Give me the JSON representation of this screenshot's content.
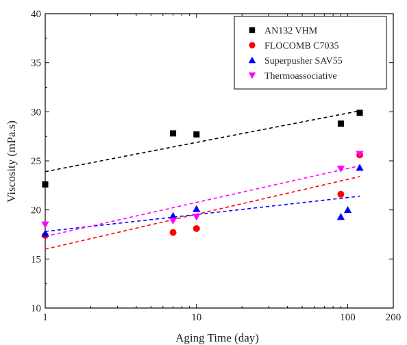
{
  "chart_data": {
    "type": "scatter",
    "xlabel": "Aging Time (day)",
    "ylabel": "Viscosity (mPa.s)",
    "xscale": "log",
    "xlim": [
      1,
      200
    ],
    "ylim": [
      10,
      40
    ],
    "xticks": [
      {
        "value": 1,
        "label": "1"
      },
      {
        "value": 10,
        "label": "10"
      },
      {
        "value": 100,
        "label": "100"
      },
      {
        "value": 200,
        "label": "200"
      }
    ],
    "yticks": [
      10,
      15,
      20,
      25,
      30,
      35,
      40
    ],
    "legend_position": "top-right",
    "series": [
      {
        "name": "AN132 VHM",
        "marker": "square",
        "color": "#000000",
        "points": [
          [
            1,
            22.6
          ],
          [
            7,
            27.8
          ],
          [
            10,
            27.7
          ],
          [
            90,
            28.8
          ],
          [
            120,
            29.9
          ]
        ],
        "fit": [
          [
            1,
            23.9
          ],
          [
            120,
            30.1
          ]
        ]
      },
      {
        "name": "FLOCOMB C7035",
        "marker": "circle",
        "color": "#ff0000",
        "points": [
          [
            1,
            17.4
          ],
          [
            7,
            17.7
          ],
          [
            10,
            18.1
          ],
          [
            90,
            21.6
          ],
          [
            120,
            25.6
          ]
        ],
        "fit": [
          [
            1,
            16.0
          ],
          [
            120,
            23.4
          ]
        ]
      },
      {
        "name": "Superpusher SAV55",
        "marker": "triangle-up",
        "color": "#0000ff",
        "points": [
          [
            1,
            17.6
          ],
          [
            7,
            19.4
          ],
          [
            10,
            20.1
          ],
          [
            90,
            19.3
          ],
          [
            100,
            20.0
          ],
          [
            120,
            24.3
          ]
        ],
        "fit": [
          [
            1,
            17.8
          ],
          [
            120,
            21.4
          ]
        ]
      },
      {
        "name": "Thermoassociative",
        "marker": "triangle-down",
        "color": "#ff00ff",
        "points": [
          [
            1,
            18.5
          ],
          [
            7,
            18.9
          ],
          [
            10,
            19.3
          ],
          [
            90,
            24.2
          ],
          [
            120,
            25.7
          ]
        ],
        "fit": [
          [
            1,
            17.3
          ],
          [
            120,
            24.5
          ]
        ]
      }
    ]
  }
}
